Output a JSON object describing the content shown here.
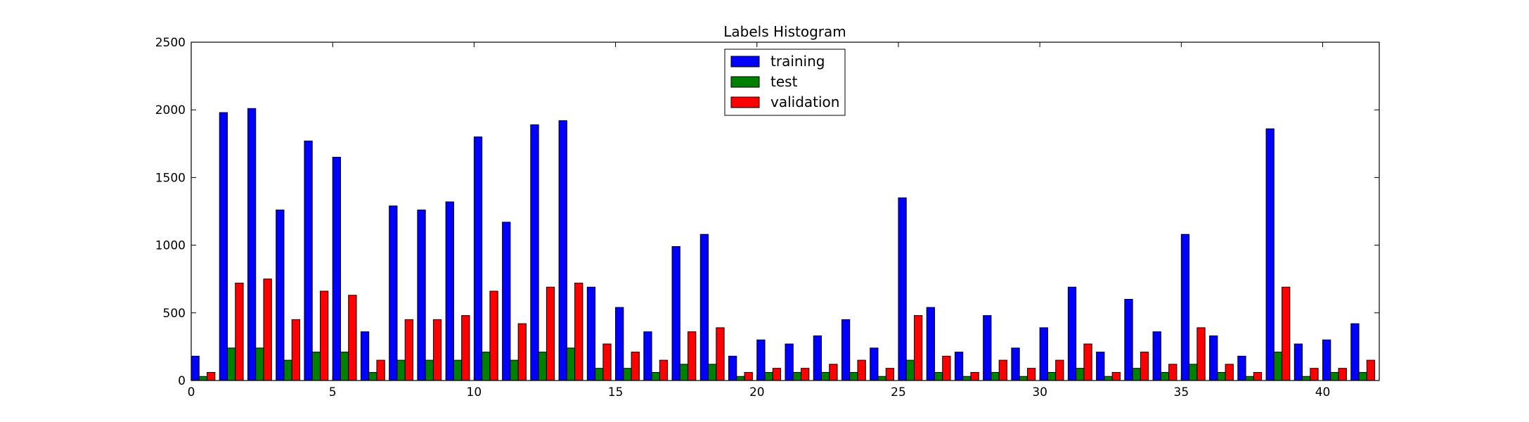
{
  "chart_data": {
    "type": "bar",
    "title": "Labels Histogram",
    "xlabel": "",
    "ylabel": "",
    "xlim": [
      0,
      42
    ],
    "ylim": [
      0,
      2500
    ],
    "xticks": [
      0,
      5,
      10,
      15,
      20,
      25,
      30,
      35,
      40
    ],
    "yticks": [
      0,
      500,
      1000,
      1500,
      2000,
      2500
    ],
    "grid": false,
    "legend_position": "top-center",
    "categories": [
      0,
      1,
      2,
      3,
      4,
      5,
      6,
      7,
      8,
      9,
      10,
      11,
      12,
      13,
      14,
      15,
      16,
      17,
      18,
      19,
      20,
      21,
      22,
      23,
      24,
      25,
      26,
      27,
      28,
      29,
      30,
      31,
      32,
      33,
      34,
      35,
      36,
      37,
      38,
      39,
      40,
      41,
      42
    ],
    "series": [
      {
        "name": "training",
        "color": "#0000ff",
        "values": [
          180,
          1980,
          2010,
          1260,
          1770,
          1650,
          360,
          1290,
          1260,
          1320,
          1800,
          1170,
          1890,
          1920,
          690,
          540,
          360,
          990,
          1080,
          180,
          300,
          270,
          330,
          450,
          240,
          1350,
          540,
          210,
          480,
          240,
          390,
          690,
          210,
          600,
          360,
          1080,
          330,
          180,
          1860,
          270,
          300,
          420,
          0
        ]
      },
      {
        "name": "test",
        "color": "#008000",
        "values": [
          30,
          240,
          240,
          150,
          210,
          210,
          60,
          150,
          150,
          150,
          210,
          150,
          210,
          240,
          90,
          90,
          60,
          120,
          120,
          30,
          60,
          60,
          60,
          60,
          30,
          150,
          60,
          30,
          60,
          30,
          60,
          90,
          30,
          90,
          60,
          120,
          60,
          30,
          210,
          30,
          60,
          60,
          0
        ]
      },
      {
        "name": "validation",
        "color": "#ff0000",
        "values": [
          60,
          720,
          750,
          450,
          660,
          630,
          150,
          450,
          450,
          480,
          660,
          420,
          690,
          720,
          270,
          210,
          150,
          360,
          390,
          60,
          90,
          90,
          120,
          150,
          90,
          480,
          180,
          60,
          150,
          90,
          150,
          270,
          60,
          210,
          120,
          390,
          120,
          60,
          690,
          90,
          90,
          150,
          0
        ]
      }
    ]
  }
}
